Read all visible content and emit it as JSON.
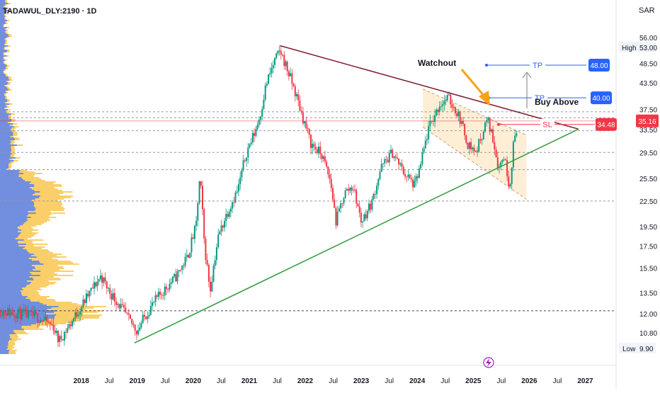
{
  "header": {
    "symbol": "TADAWUL_DLY:2190 · 1D",
    "currency": "SAR"
  },
  "chart_data": {
    "type": "line",
    "y_scale": "log",
    "ylim": [
      9.4,
      58
    ],
    "x_range": [
      2016.55,
      2027.55
    ],
    "y_ticks": [
      "56.00",
      "53.00",
      "48.50",
      "43.50",
      "37.50",
      "33.50",
      "29.50",
      "25.50",
      "22.50",
      "19.50",
      "17.50",
      "15.50",
      "13.50",
      "12.00",
      "10.80",
      "9.90"
    ],
    "y_tick_values": [
      56,
      53,
      48.5,
      43.5,
      37.5,
      33.5,
      29.5,
      25.5,
      22.5,
      19.5,
      17.5,
      15.5,
      13.5,
      12,
      10.8,
      9.9
    ],
    "x_ticks": [
      {
        "label": "Jul",
        "t": 2016.5
      },
      {
        "label": "2018",
        "t": 2018.0
      },
      {
        "label": "Jul",
        "t": 2018.5
      },
      {
        "label": "2019",
        "t": 2019.0
      },
      {
        "label": "Jul",
        "t": 2019.5
      },
      {
        "label": "2020",
        "t": 2020.0
      },
      {
        "label": "Jul",
        "t": 2020.5
      },
      {
        "label": "2021",
        "t": 2021.0
      },
      {
        "label": "Jul",
        "t": 2021.5
      },
      {
        "label": "2022",
        "t": 2022.0
      },
      {
        "label": "Jul",
        "t": 2022.5
      },
      {
        "label": "2023",
        "t": 2023.0
      },
      {
        "label": "Jul",
        "t": 2023.5
      },
      {
        "label": "2024",
        "t": 2024.0
      },
      {
        "label": "Jul",
        "t": 2024.5
      },
      {
        "label": "2025",
        "t": 2025.0
      },
      {
        "label": "Jul",
        "t": 2025.5
      },
      {
        "label": "2026",
        "t": 2026.0
      },
      {
        "label": "Jul",
        "t": 2026.5
      },
      {
        "label": "2027",
        "t": 2027.0
      }
    ],
    "price_path": [
      [
        2016.55,
        12.2
      ],
      [
        2016.9,
        12.0
      ],
      [
        2017.2,
        11.8
      ],
      [
        2017.5,
        11.2
      ],
      [
        2017.6,
        10.3
      ],
      [
        2017.8,
        11.3
      ],
      [
        2018.0,
        12.5
      ],
      [
        2018.2,
        13.8
      ],
      [
        2018.35,
        14.8
      ],
      [
        2018.5,
        13.6
      ],
      [
        2018.7,
        12.5
      ],
      [
        2018.85,
        11.6
      ],
      [
        2019.0,
        10.9
      ],
      [
        2019.1,
        11.6
      ],
      [
        2019.3,
        12.8
      ],
      [
        2019.5,
        13.8
      ],
      [
        2019.7,
        14.8
      ],
      [
        2019.9,
        16.5
      ],
      [
        2020.05,
        19.5
      ],
      [
        2020.12,
        25.8
      ],
      [
        2020.2,
        17.5
      ],
      [
        2020.3,
        13.6
      ],
      [
        2020.45,
        18.5
      ],
      [
        2020.6,
        21.0
      ],
      [
        2020.8,
        24.0
      ],
      [
        2020.95,
        29.5
      ],
      [
        2021.1,
        33.0
      ],
      [
        2021.2,
        36.5
      ],
      [
        2021.3,
        43.0
      ],
      [
        2021.45,
        49.0
      ],
      [
        2021.55,
        52.0
      ],
      [
        2021.7,
        46.0
      ],
      [
        2021.8,
        42.0
      ],
      [
        2021.95,
        36.0
      ],
      [
        2022.1,
        31.0
      ],
      [
        2022.3,
        29.0
      ],
      [
        2022.45,
        25.0
      ],
      [
        2022.55,
        20.0
      ],
      [
        2022.7,
        23.5
      ],
      [
        2022.85,
        24.5
      ],
      [
        2022.95,
        21.5
      ],
      [
        2023.0,
        20.0
      ],
      [
        2023.2,
        22.5
      ],
      [
        2023.35,
        27.0
      ],
      [
        2023.55,
        29.5
      ],
      [
        2023.75,
        26.5
      ],
      [
        2023.95,
        24.5
      ],
      [
        2024.05,
        27.0
      ],
      [
        2024.2,
        33.5
      ],
      [
        2024.4,
        38.5
      ],
      [
        2024.55,
        40.0
      ],
      [
        2024.75,
        36.0
      ],
      [
        2024.9,
        31.0
      ],
      [
        2025.05,
        29.5
      ],
      [
        2025.25,
        35.5
      ],
      [
        2025.35,
        32.0
      ],
      [
        2025.45,
        27.0
      ],
      [
        2025.55,
        29.0
      ],
      [
        2025.65,
        24.2
      ],
      [
        2025.72,
        31.0
      ],
      [
        2025.8,
        35.2
      ]
    ],
    "trend_lines": [
      {
        "name": "descending-resistance",
        "from": [
          2021.55,
          53.5
        ],
        "to": [
          2026.88,
          33.6
        ],
        "color": "#7f1d2e"
      },
      {
        "name": "ascending-support",
        "from": [
          2018.95,
          10.2
        ],
        "to": [
          2026.88,
          33.6
        ],
        "color": "#2e9a3e"
      }
    ],
    "channel": {
      "upper": [
        [
          2024.1,
          42.0
        ],
        [
          2025.95,
          32.5
        ]
      ],
      "lower": [
        [
          2024.1,
          34.0
        ],
        [
          2025.95,
          22.7
        ]
      ],
      "fill": "#fde8c8"
    },
    "dashed_levels": [
      37.0,
      35.8,
      33.3,
      29.5,
      26.8,
      22.5,
      12.2
    ],
    "price_marker": {
      "value": 35.16,
      "label": "35.16",
      "color": "#f23645"
    },
    "range_labels": {
      "high": "High",
      "high_value": "53.00",
      "low": "Low",
      "low_value": "9.90"
    },
    "annotations": {
      "watchout": "Watchout",
      "buy_above": "Buy Above",
      "tp_label": "TP",
      "sl_label": "SL",
      "tp1_value": "48.00",
      "tp2_value": "40.00",
      "sl_value": "34.48",
      "tp_color": "#2962ff",
      "sl_color": "#f23645",
      "arrow_color": "#f7a21b"
    },
    "volume_profile_colors": {
      "primary": "#f9c74f",
      "secondary": "#4f7dfc"
    },
    "candle_colors": {
      "up": "#089981",
      "down": "#f23645"
    }
  }
}
